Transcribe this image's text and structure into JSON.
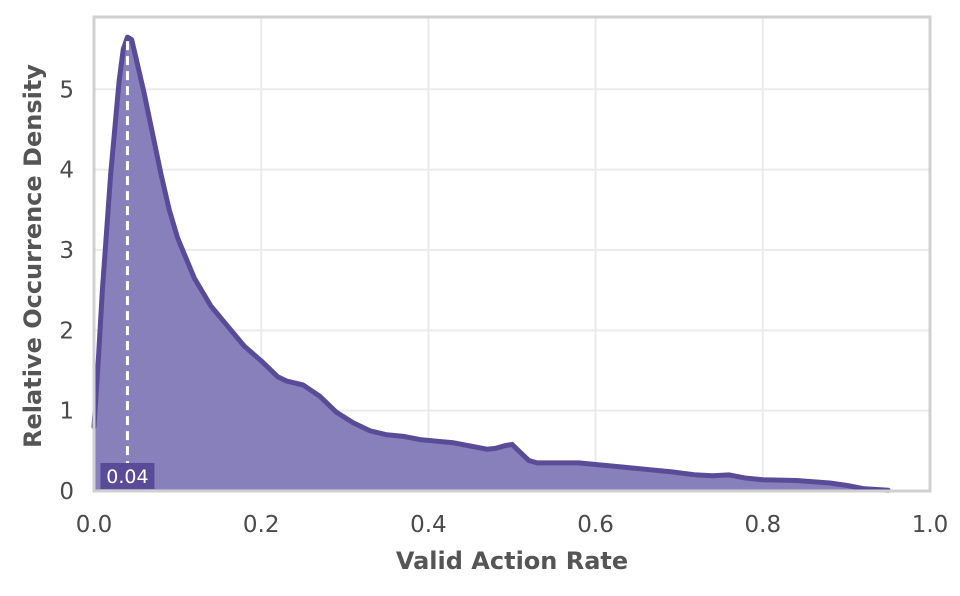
{
  "chart_data": {
    "type": "area",
    "title": "",
    "xlabel": "Valid Action Rate",
    "ylabel": "Relative Occurrence Density",
    "xlim": [
      0.0,
      1.0
    ],
    "ylim": [
      0,
      5.9
    ],
    "x_ticks": [
      "0.0",
      "0.2",
      "0.4",
      "0.6",
      "0.8",
      "1.0"
    ],
    "y_ticks": [
      "0",
      "1",
      "2",
      "3",
      "4",
      "5"
    ],
    "grid": true,
    "colors": {
      "line": "#5a4b98",
      "fill": "#8880bb",
      "frame": "#d0d0d0",
      "grid": "#ebebeb"
    },
    "series": [
      {
        "x": [
          0.0,
          0.005,
          0.01,
          0.02,
          0.03,
          0.035,
          0.04,
          0.045,
          0.05,
          0.06,
          0.07,
          0.08,
          0.09,
          0.1,
          0.12,
          0.14,
          0.16,
          0.18,
          0.2,
          0.22,
          0.23,
          0.25,
          0.27,
          0.29,
          0.31,
          0.33,
          0.35,
          0.37,
          0.39,
          0.41,
          0.43,
          0.45,
          0.47,
          0.48,
          0.49,
          0.5,
          0.51,
          0.52,
          0.53,
          0.55,
          0.58,
          0.6,
          0.63,
          0.66,
          0.69,
          0.72,
          0.74,
          0.76,
          0.78,
          0.8,
          0.84,
          0.88,
          0.9,
          0.92,
          0.95
        ],
        "values": [
          0.8,
          1.6,
          2.5,
          3.95,
          5.1,
          5.5,
          5.65,
          5.62,
          5.4,
          4.95,
          4.45,
          3.95,
          3.5,
          3.15,
          2.65,
          2.3,
          2.05,
          1.8,
          1.62,
          1.42,
          1.37,
          1.32,
          1.18,
          0.98,
          0.85,
          0.75,
          0.7,
          0.68,
          0.64,
          0.62,
          0.6,
          0.56,
          0.52,
          0.53,
          0.56,
          0.58,
          0.48,
          0.38,
          0.35,
          0.35,
          0.35,
          0.33,
          0.3,
          0.27,
          0.24,
          0.2,
          0.19,
          0.2,
          0.16,
          0.14,
          0.13,
          0.1,
          0.07,
          0.03,
          0.01
        ]
      }
    ],
    "annotations": [
      {
        "type": "vline",
        "x": 0.04,
        "label": "0.04"
      }
    ]
  }
}
